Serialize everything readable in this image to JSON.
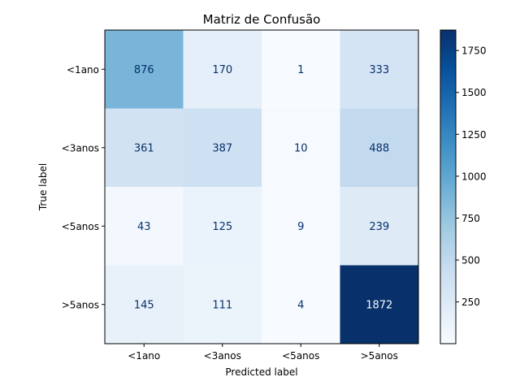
{
  "chart_data": {
    "type": "heatmap",
    "title": "Matriz de Confusão",
    "xlabel": "Predicted label",
    "ylabel": "True label",
    "x_categories": [
      "<1ano",
      "<3anos",
      "<5anos",
      ">5anos"
    ],
    "y_categories": [
      "<1ano",
      "<3anos",
      "<5anos",
      ">5anos"
    ],
    "values": [
      [
        876,
        170,
        1,
        333
      ],
      [
        361,
        387,
        10,
        488
      ],
      [
        43,
        125,
        9,
        239
      ],
      [
        145,
        111,
        4,
        1872
      ]
    ],
    "colormap": "Blues",
    "color_range": [
      1,
      1872
    ],
    "colorbar_ticks": [
      250,
      500,
      750,
      1000,
      1250,
      1500,
      1750
    ],
    "colors": {
      "low": "#f7fbff",
      "high": "#08306b",
      "text_light": "#f7fbff",
      "text_dark": "#08306b"
    }
  }
}
